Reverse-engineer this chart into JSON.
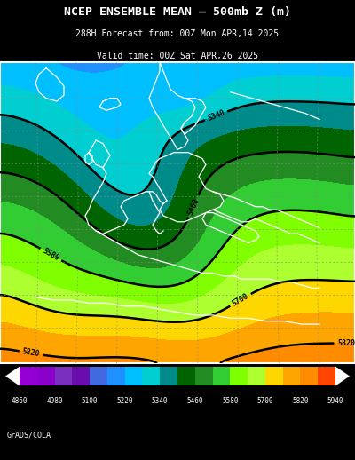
{
  "title_line1": "NCEP ENSEMBLE MEAN – 500mb Z (m)",
  "title_line2": "288H Forecast from: 00Z Mon APR,14 2025",
  "title_line3": "Valid time: 00Z Sat APR,26 2025",
  "colorbar_labels": [
    4860,
    4980,
    5100,
    5220,
    5340,
    5460,
    5580,
    5700,
    5820,
    5940
  ],
  "cb_colors": [
    "#9400D3",
    "#8B00CC",
    "#7B2FBE",
    "#6A0DAD",
    "#4169E1",
    "#1E90FF",
    "#00BFFF",
    "#00CED1",
    "#008B8B",
    "#006400",
    "#228B22",
    "#32CD32",
    "#7FFF00",
    "#ADFF2F",
    "#FFD700",
    "#FFA500",
    "#FF8C00",
    "#FF4500"
  ],
  "footer_text": "GrADS/COLA",
  "color_levels": [
    4860,
    4920,
    4980,
    5040,
    5100,
    5160,
    5220,
    5280,
    5340,
    5400,
    5460,
    5520,
    5580,
    5640,
    5700,
    5760,
    5820,
    5880,
    5940
  ],
  "contour_levels": [
    5340,
    5460,
    5580,
    5700,
    5820
  ],
  "bg_color": "#000000",
  "text_color": "#ffffff",
  "title1_fontsize": 9.5,
  "title2_fontsize": 7.0,
  "footer_fontsize": 6.0
}
